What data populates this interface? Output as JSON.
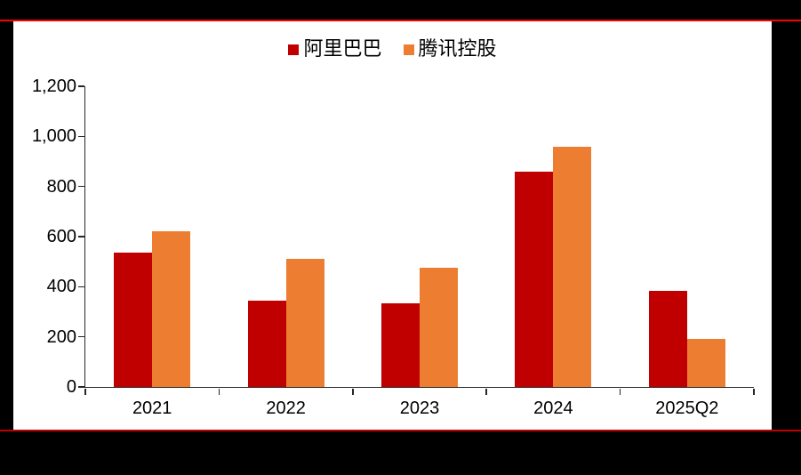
{
  "frame": {
    "background_color": "#000000",
    "panel_color": "#ffffff",
    "top_rule_color": "#fa0000",
    "bottom_rule_color": "#c00000"
  },
  "legend": {
    "items": [
      {
        "label": "阿里巴巴",
        "color": "#c00000"
      },
      {
        "label": "腾讯控股",
        "color": "#ed7d31"
      }
    ]
  },
  "chart_data": {
    "type": "bar",
    "categories": [
      "2021",
      "2022",
      "2023",
      "2024",
      "2025Q2"
    ],
    "series": [
      {
        "name": "阿里巴巴",
        "color": "#c00000",
        "values": [
          535,
          345,
          335,
          860,
          385
        ]
      },
      {
        "name": "腾讯控股",
        "color": "#ed7d31",
        "values": [
          620,
          510,
          475,
          960,
          190
        ]
      }
    ],
    "title": "",
    "xlabel": "",
    "ylabel": "",
    "ylim": [
      0,
      1200
    ],
    "ytick_step": 200,
    "ytick_labels": [
      "0",
      "200",
      "400",
      "600",
      "800",
      "1,000",
      "1,200"
    ],
    "grid": false,
    "legend_position": "top-center",
    "axis_color": "#262626",
    "label_color": "#000000"
  }
}
